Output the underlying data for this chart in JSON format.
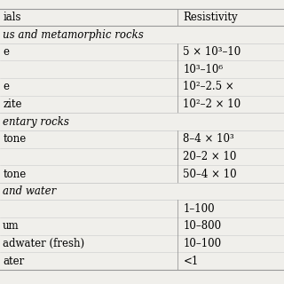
{
  "col1_header": "ials",
  "col2_header": "Resistivity",
  "sections": [
    {
      "section_name": "us and metamorphic rocks",
      "rows": [
        {
          "material": "e",
          "resistivity": "5 × 10³–10"
        },
        {
          "material": "",
          "resistivity": "10³–10⁶"
        },
        {
          "material": "e",
          "resistivity": "10²–2.5 ×"
        },
        {
          "material": "zite",
          "resistivity": "10²–2 × 10"
        }
      ]
    },
    {
      "section_name": "entary rocks",
      "rows": [
        {
          "material": "tone",
          "resistivity": "8–4 × 10³"
        },
        {
          "material": "",
          "resistivity": "20–2 × 10"
        },
        {
          "material": "tone",
          "resistivity": "50–4 × 10"
        }
      ]
    },
    {
      "section_name": "and water",
      "rows": [
        {
          "material": "",
          "resistivity": "1–100"
        },
        {
          "material": "um",
          "resistivity": "10–800"
        },
        {
          "material": "adwater (fresh)",
          "resistivity": "10–100"
        },
        {
          "material": "ater",
          "resistivity": "<1"
        }
      ]
    }
  ],
  "bg_color": "#f0efeb",
  "line_color_heavy": "#999999",
  "line_color_light": "#cccccc",
  "font_size": 8.5,
  "header_font_size": 8.5
}
